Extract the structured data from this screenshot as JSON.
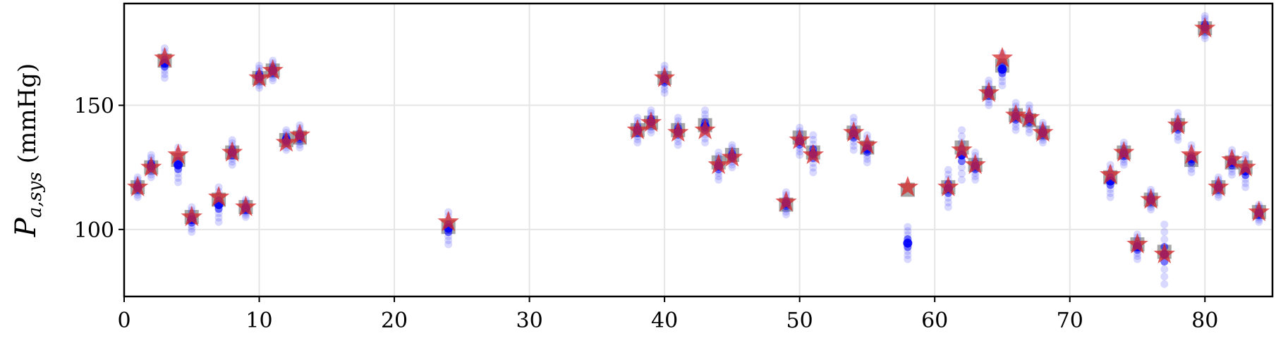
{
  "chart_data": {
    "type": "scatter",
    "title": "",
    "xlabel": "",
    "ylabel": "P_{a,sys} (mmHg)",
    "ylabel_parts": {
      "main": "P",
      "sub": "a,sys",
      "unit": "(mmHg)"
    },
    "xlim": [
      0,
      85
    ],
    "ylim": [
      73,
      191
    ],
    "x_ticks": [
      0,
      10,
      20,
      30,
      40,
      50,
      60,
      70,
      80
    ],
    "y_ticks": [
      100,
      150
    ],
    "grid": true,
    "legend": "none",
    "colors": {
      "true": "#d62728",
      "mean": "#808080",
      "samples": "#0000ff",
      "grid": "#e5e5e5"
    },
    "series": [
      {
        "role": "true-value",
        "marker": "star",
        "x": [
          1,
          2,
          3,
          4,
          5,
          7,
          8,
          9,
          10,
          11,
          12,
          13,
          24,
          38,
          39,
          40,
          41,
          43,
          44,
          45,
          49,
          50,
          51,
          54,
          55,
          58,
          61,
          62,
          63,
          64,
          65,
          66,
          67,
          68,
          73,
          74,
          75,
          76,
          77,
          78,
          79,
          80,
          81,
          82,
          83,
          84
        ],
        "y": [
          117,
          125,
          169,
          130,
          105,
          113,
          131,
          109,
          161,
          164,
          135,
          138,
          103,
          140,
          143,
          161,
          139,
          140,
          126,
          129,
          111,
          136,
          130,
          139,
          134,
          117,
          117,
          132,
          126,
          155,
          169,
          146,
          145,
          139,
          122,
          131,
          94,
          112,
          90,
          142,
          130,
          181,
          117,
          128,
          125,
          107
        ]
      },
      {
        "role": "posterior-mean",
        "marker": "square",
        "x": [
          1,
          2,
          3,
          4,
          5,
          7,
          8,
          9,
          10,
          11,
          12,
          13,
          24,
          38,
          39,
          40,
          41,
          43,
          44,
          45,
          49,
          50,
          51,
          54,
          55,
          58,
          61,
          62,
          63,
          64,
          65,
          66,
          67,
          68,
          73,
          74,
          75,
          76,
          77,
          78,
          79,
          80,
          81,
          82,
          83,
          84
        ],
        "y": [
          117,
          125,
          168,
          128,
          105,
          112,
          131,
          109,
          161,
          164,
          136,
          137,
          101,
          140,
          143,
          161,
          140,
          142,
          127,
          130,
          110,
          137,
          131,
          139,
          133,
          116,
          117,
          133,
          126,
          155,
          166,
          146,
          144,
          139,
          121,
          131,
          94,
          112,
          91,
          142,
          128,
          181,
          117,
          127,
          125,
          107
        ]
      },
      {
        "role": "posterior-samples",
        "marker": "circle",
        "x": [
          1,
          2,
          3,
          4,
          5,
          7,
          8,
          9,
          10,
          11,
          12,
          13,
          24,
          38,
          39,
          40,
          41,
          43,
          44,
          45,
          49,
          50,
          51,
          54,
          55,
          58,
          61,
          62,
          63,
          64,
          65,
          66,
          67,
          68,
          73,
          74,
          75,
          76,
          77,
          78,
          79,
          80,
          81,
          82,
          83,
          84
        ],
        "y_min": [
          113,
          121,
          161,
          119,
          99,
          103,
          126,
          105,
          157,
          160,
          132,
          133,
          94,
          135,
          139,
          155,
          134,
          135,
          120,
          125,
          106,
          130,
          123,
          132,
          127,
          88,
          109,
          120,
          120,
          150,
          158,
          140,
          139,
          135,
          113,
          126,
          88,
          108,
          78,
          136,
          123,
          177,
          113,
          122,
          117,
          103
        ],
        "y_max": [
          121,
          130,
          173,
          133,
          109,
          117,
          136,
          112,
          166,
          168,
          140,
          142,
          107,
          145,
          148,
          166,
          145,
          148,
          131,
          134,
          115,
          141,
          138,
          145,
          138,
          101,
          124,
          140,
          131,
          160,
          171,
          151,
          150,
          143,
          126,
          135,
          98,
          116,
          102,
          147,
          134,
          186,
          121,
          132,
          130,
          110
        ]
      }
    ]
  }
}
